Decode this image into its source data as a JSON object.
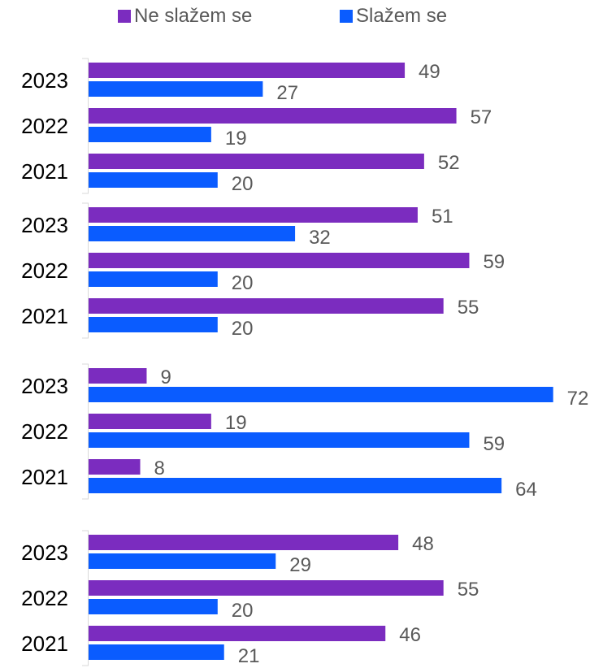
{
  "chart_data": {
    "type": "bar",
    "orientation": "horizontal",
    "title": "",
    "xlabel": "",
    "ylabel": "",
    "xlim": [
      0,
      72
    ],
    "grid": false,
    "legend_position": "top",
    "series_colors": {
      "ne": "#7b2cbf",
      "da": "#0a5cff"
    },
    "legend": [
      {
        "name": "Ne slažem se",
        "color": "#7b2cbf"
      },
      {
        "name": "Slažem se",
        "color": "#0a5cff"
      }
    ],
    "groups": [
      {
        "rows": [
          {
            "year": "2023",
            "ne": 49,
            "da": 27
          },
          {
            "year": "2022",
            "ne": 57,
            "da": 19
          },
          {
            "year": "2021",
            "ne": 52,
            "da": 20
          }
        ]
      },
      {
        "rows": [
          {
            "year": "2023",
            "ne": 51,
            "da": 32
          },
          {
            "year": "2022",
            "ne": 59,
            "da": 20
          },
          {
            "year": "2021",
            "ne": 55,
            "da": 20
          }
        ]
      },
      {
        "rows": [
          {
            "year": "2023",
            "ne": 9,
            "da": 72
          },
          {
            "year": "2022",
            "ne": 19,
            "da": 59
          },
          {
            "year": "2021",
            "ne": 8,
            "da": 64
          }
        ]
      },
      {
        "rows": [
          {
            "year": "2023",
            "ne": 48,
            "da": 29
          },
          {
            "year": "2022",
            "ne": 55,
            "da": 20
          },
          {
            "year": "2021",
            "ne": 46,
            "da": 21
          }
        ]
      }
    ]
  }
}
